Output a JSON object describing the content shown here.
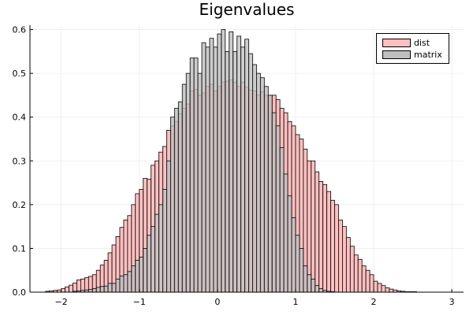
{
  "chart_data": {
    "type": "bar",
    "title": "Eigenvalues",
    "xlabel": "",
    "ylabel": "",
    "xlim": [
      -2.4,
      3.15
    ],
    "ylim": [
      0,
      0.61
    ],
    "xticks": [
      -2,
      -1,
      0,
      1,
      2,
      3
    ],
    "xtick_labels": [
      "−2",
      "−1",
      "0",
      "1",
      "2",
      "3"
    ],
    "yticks": [
      0,
      0.1,
      0.2,
      0.3,
      0.4,
      0.5,
      0.6
    ],
    "ytick_labels": [
      "0.0",
      "0.1",
      "0.2",
      "0.3",
      "0.4",
      "0.5",
      "0.6"
    ],
    "grid": true,
    "legend_position": "top-right",
    "bin_width": 0.05,
    "series": [
      {
        "name": "dist",
        "color": "#ffbfbf",
        "x_start": -2.2,
        "values": [
          0.002,
          0.003,
          0.004,
          0.005,
          0.008,
          0.012,
          0.016,
          0.021,
          0.028,
          0.03,
          0.033,
          0.036,
          0.04,
          0.05,
          0.062,
          0.073,
          0.09,
          0.108,
          0.127,
          0.148,
          0.165,
          0.175,
          0.2,
          0.225,
          0.235,
          0.26,
          0.258,
          0.29,
          0.3,
          0.32,
          0.333,
          0.37,
          0.38,
          0.39,
          0.408,
          0.42,
          0.43,
          0.46,
          0.463,
          0.45,
          0.455,
          0.47,
          0.475,
          0.46,
          0.47,
          0.48,
          0.482,
          0.485,
          0.48,
          0.47,
          0.48,
          0.468,
          0.462,
          0.46,
          0.45,
          0.458,
          0.45,
          0.45,
          0.45,
          0.44,
          0.42,
          0.41,
          0.39,
          0.38,
          0.36,
          0.35,
          0.327,
          0.3,
          0.3,
          0.275,
          0.253,
          0.246,
          0.23,
          0.21,
          0.2,
          0.165,
          0.15,
          0.125,
          0.105,
          0.085,
          0.075,
          0.06,
          0.05,
          0.04,
          0.025,
          0.02,
          0.015,
          0.01,
          0.007,
          0.005,
          0.003,
          0.002,
          0.001,
          0.001,
          0.001
        ]
      },
      {
        "name": "matrix",
        "color": "#bfbfbf",
        "x_start": -2.2,
        "values": [
          0,
          0,
          0,
          0,
          0,
          0,
          0,
          0.002,
          0.003,
          0.004,
          0.005,
          0.006,
          0.008,
          0.011,
          0.013,
          0.014,
          0.02,
          0.02,
          0.03,
          0.037,
          0.04,
          0.047,
          0.06,
          0.073,
          0.08,
          0.1,
          0.13,
          0.15,
          0.178,
          0.2,
          0.235,
          0.3,
          0.4,
          0.42,
          0.435,
          0.475,
          0.5,
          0.535,
          0.535,
          0.5,
          0.57,
          0.56,
          0.58,
          0.56,
          0.59,
          0.6,
          0.55,
          0.595,
          0.55,
          0.585,
          0.56,
          0.578,
          0.545,
          0.52,
          0.5,
          0.49,
          0.47,
          0.45,
          0.41,
          0.38,
          0.33,
          0.27,
          0.22,
          0.17,
          0.13,
          0.1,
          0.06,
          0.04,
          0.03,
          0.015,
          0.008,
          0.004,
          0.002,
          0.001,
          0,
          0,
          0,
          0,
          0,
          0,
          0,
          0,
          0,
          0,
          0,
          0,
          0,
          0,
          0,
          0,
          0,
          0,
          0,
          0,
          0
        ]
      }
    ]
  }
}
